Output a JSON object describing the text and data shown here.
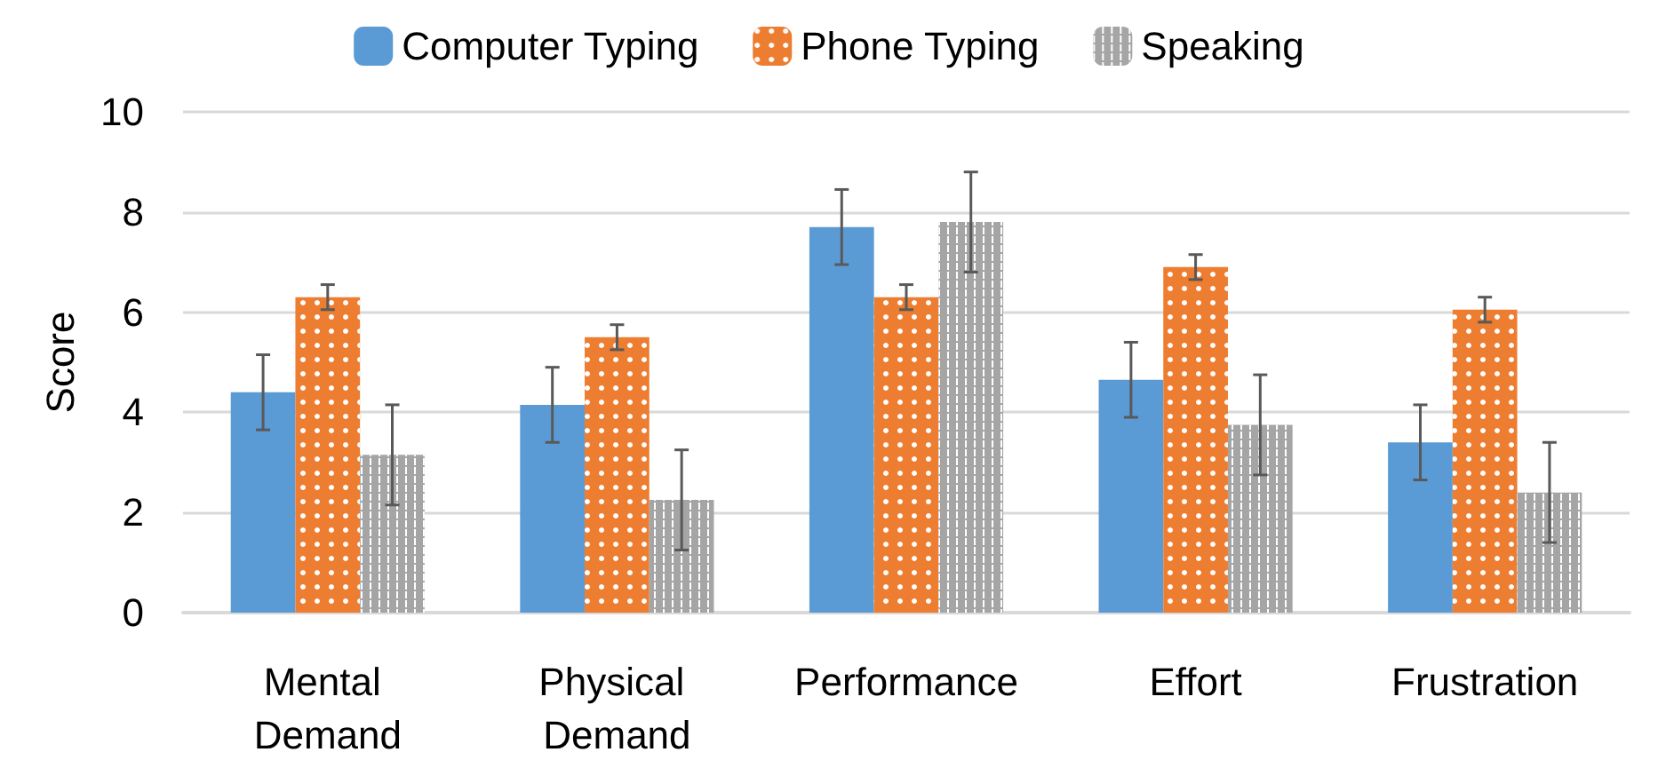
{
  "chart_data": {
    "type": "bar",
    "ylabel": "Score",
    "categories": [
      "Mental Demand",
      "Physical Demand",
      "Performance",
      "Effort",
      "Frustration"
    ],
    "series": [
      {
        "name": "Computer Typing",
        "color": "#5b9bd5",
        "values": [
          4.4,
          4.15,
          7.7,
          4.65,
          3.4
        ],
        "errors": [
          0.75,
          0.75,
          0.75,
          0.75,
          0.75
        ]
      },
      {
        "name": "Phone Typing",
        "color": "#ed7d31",
        "values": [
          6.3,
          5.5,
          6.3,
          6.9,
          6.05
        ],
        "errors": [
          0.25,
          0.25,
          0.25,
          0.25,
          0.25
        ]
      },
      {
        "name": "Speaking",
        "color": "#a5a5a5",
        "values": [
          3.15,
          2.25,
          7.8,
          3.75,
          2.4
        ],
        "errors": [
          1.0,
          1.0,
          1.0,
          1.0,
          1.0
        ]
      }
    ],
    "ylim": [
      0,
      10
    ],
    "yticks": [
      0,
      2,
      4,
      6,
      8,
      10
    ],
    "grid": "y",
    "legend": "top"
  }
}
